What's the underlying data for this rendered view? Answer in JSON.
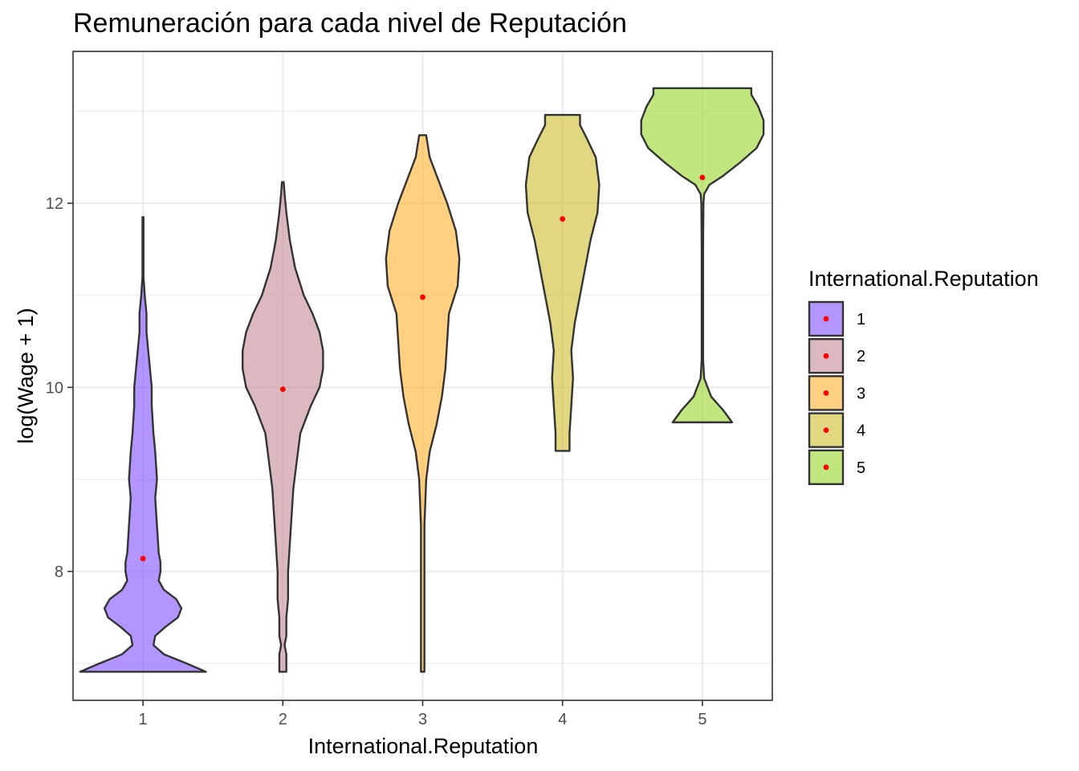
{
  "chart_data": {
    "type": "violin",
    "title": "Remuneración para cada nivel de Reputación",
    "xlabel": "International.Reputation",
    "ylabel": "log(Wage + 1)",
    "categories": [
      "1",
      "2",
      "3",
      "4",
      "5"
    ],
    "ylim": [
      6.6,
      13.65
    ],
    "y_ticks": [
      8,
      10,
      12
    ],
    "y_minor_ticks": [
      7,
      9,
      11,
      13
    ],
    "grid": true,
    "legend": {
      "title": "International.Reputation",
      "position": "right",
      "entries": [
        "1",
        "2",
        "3",
        "4",
        "5"
      ]
    },
    "colors": [
      "#7f4fff",
      "#c48a98",
      "#ffb029",
      "#cbbd2b",
      "#98d62a"
    ],
    "point_color": "#ff0000",
    "series": [
      {
        "name": "1",
        "median": 8.14,
        "density": [
          [
            6.91,
            0.36
          ],
          [
            7.0,
            0.25
          ],
          [
            7.1,
            0.12
          ],
          [
            7.2,
            0.06
          ],
          [
            7.3,
            0.07
          ],
          [
            7.4,
            0.13
          ],
          [
            7.5,
            0.2
          ],
          [
            7.6,
            0.22
          ],
          [
            7.7,
            0.19
          ],
          [
            7.8,
            0.12
          ],
          [
            7.9,
            0.09
          ],
          [
            8.0,
            0.1
          ],
          [
            8.1,
            0.1
          ],
          [
            8.2,
            0.09
          ],
          [
            8.5,
            0.08
          ],
          [
            8.8,
            0.07
          ],
          [
            9.0,
            0.08
          ],
          [
            9.3,
            0.07
          ],
          [
            9.5,
            0.06
          ],
          [
            9.8,
            0.05
          ],
          [
            10.0,
            0.05
          ],
          [
            10.2,
            0.04
          ],
          [
            10.4,
            0.03
          ],
          [
            10.6,
            0.02
          ],
          [
            10.8,
            0.02
          ],
          [
            11.0,
            0.01
          ],
          [
            11.2,
            0.003
          ],
          [
            11.5,
            0.003
          ],
          [
            11.85,
            0.003
          ]
        ]
      },
      {
        "name": "2",
        "median": 9.98,
        "density": [
          [
            6.91,
            0.02
          ],
          [
            7.0,
            0.02
          ],
          [
            7.1,
            0.02
          ],
          [
            7.2,
            0.01
          ],
          [
            7.3,
            0.02
          ],
          [
            7.5,
            0.02
          ],
          [
            7.7,
            0.03
          ],
          [
            8.0,
            0.03
          ],
          [
            8.3,
            0.04
          ],
          [
            8.6,
            0.05
          ],
          [
            8.9,
            0.06
          ],
          [
            9.2,
            0.08
          ],
          [
            9.5,
            0.1
          ],
          [
            9.8,
            0.16
          ],
          [
            10.0,
            0.21
          ],
          [
            10.2,
            0.23
          ],
          [
            10.4,
            0.23
          ],
          [
            10.6,
            0.21
          ],
          [
            10.8,
            0.17
          ],
          [
            11.0,
            0.12
          ],
          [
            11.3,
            0.07
          ],
          [
            11.6,
            0.04
          ],
          [
            11.9,
            0.02
          ],
          [
            12.1,
            0.01
          ],
          [
            12.23,
            0.005
          ]
        ]
      },
      {
        "name": "3",
        "median": 10.98,
        "density": [
          [
            6.91,
            0.01
          ],
          [
            7.5,
            0.01
          ],
          [
            8.0,
            0.01
          ],
          [
            8.5,
            0.01
          ],
          [
            9.0,
            0.02
          ],
          [
            9.3,
            0.04
          ],
          [
            9.6,
            0.08
          ],
          [
            9.9,
            0.11
          ],
          [
            10.2,
            0.13
          ],
          [
            10.5,
            0.14
          ],
          [
            10.8,
            0.15
          ],
          [
            11.1,
            0.2
          ],
          [
            11.4,
            0.21
          ],
          [
            11.7,
            0.19
          ],
          [
            12.0,
            0.14
          ],
          [
            12.3,
            0.08
          ],
          [
            12.5,
            0.04
          ],
          [
            12.74,
            0.02
          ]
        ]
      },
      {
        "name": "4",
        "median": 11.83,
        "density": [
          [
            9.31,
            0.04
          ],
          [
            9.5,
            0.04
          ],
          [
            9.8,
            0.05
          ],
          [
            10.1,
            0.06
          ],
          [
            10.4,
            0.05
          ],
          [
            10.7,
            0.07
          ],
          [
            11.0,
            0.1
          ],
          [
            11.3,
            0.13
          ],
          [
            11.6,
            0.16
          ],
          [
            11.9,
            0.2
          ],
          [
            12.2,
            0.21
          ],
          [
            12.5,
            0.19
          ],
          [
            12.7,
            0.14
          ],
          [
            12.85,
            0.1
          ],
          [
            12.96,
            0.1
          ]
        ]
      },
      {
        "name": "5",
        "median": 12.28,
        "density": [
          [
            9.62,
            0.17
          ],
          [
            9.75,
            0.12
          ],
          [
            9.9,
            0.05
          ],
          [
            10.1,
            0.01
          ],
          [
            10.3,
            0.004
          ],
          [
            11.0,
            0.004
          ],
          [
            11.5,
            0.004
          ],
          [
            12.0,
            0.006
          ],
          [
            12.1,
            0.01
          ],
          [
            12.2,
            0.04
          ],
          [
            12.3,
            0.12
          ],
          [
            12.45,
            0.22
          ],
          [
            12.6,
            0.31
          ],
          [
            12.75,
            0.35
          ],
          [
            12.9,
            0.35
          ],
          [
            13.05,
            0.32
          ],
          [
            13.18,
            0.28
          ],
          [
            13.25,
            0.28
          ]
        ]
      }
    ]
  }
}
